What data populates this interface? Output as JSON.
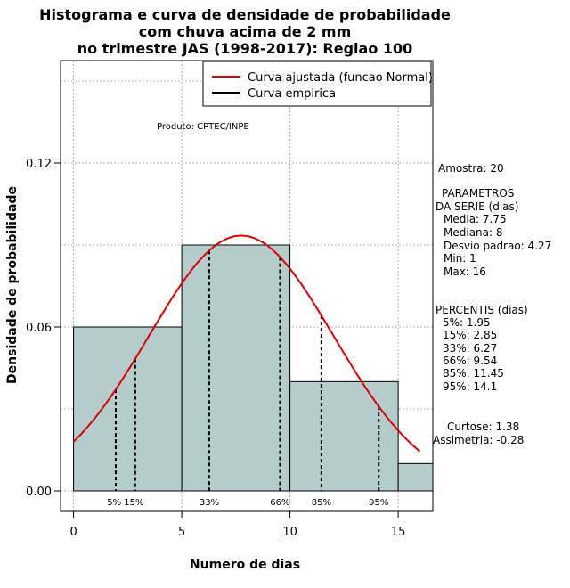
{
  "chart_data": {
    "type": "bar",
    "title_lines": [
      "Histograma e curva de densidade de probabilidade",
      "com chuva acima de 2 mm",
      "no trimestre JAS (1998-2017): Regiao 100"
    ],
    "xlabel": "Numero de dias",
    "ylabel": "Densidade de probabilidade",
    "xlim": [
      -0.6,
      16.6
    ],
    "ylim": [
      -0.0075,
      0.1575
    ],
    "x_ticks": [
      0,
      5,
      10,
      15
    ],
    "y_ticks": [
      0.0,
      0.06,
      0.12
    ],
    "y_tick_labels": [
      "0.00",
      "0.06",
      "0.12"
    ],
    "grid_x": [
      0,
      5,
      10,
      15
    ],
    "grid_y": [
      0.0,
      0.03,
      0.06,
      0.09,
      0.12,
      0.15
    ],
    "histogram": {
      "bins": [
        [
          0,
          5
        ],
        [
          5,
          10
        ],
        [
          10,
          15
        ],
        [
          15,
          16.6
        ]
      ],
      "values": [
        0.06,
        0.09,
        0.04,
        0.01
      ],
      "fill": "#b5cccc"
    },
    "normal_curve": {
      "mean": 7.75,
      "sd": 4.27,
      "x_range": [
        0,
        16
      ],
      "color": "#dd0000"
    },
    "percentile_lines": [
      {
        "label": "5%",
        "value": 1.95
      },
      {
        "label": "15%",
        "value": 2.85
      },
      {
        "label": "33%",
        "value": 6.27
      },
      {
        "label": "66%",
        "value": 9.54
      },
      {
        "label": "85%",
        "value": 11.45
      },
      {
        "label": "95%",
        "value": 14.1
      }
    ],
    "percentile_bottom_label": "5% 15%",
    "legend": {
      "position": "top-right",
      "entries": [
        {
          "label": "Curva ajustada (funcao Normal)",
          "color": "#dd0000"
        },
        {
          "label": "Curva empirica",
          "color": "#000000"
        }
      ]
    },
    "annotation": "Produto: CPTEC/INPE",
    "stats_lines": [
      "Amostra: 20",
      "PARAMETROS",
      "DA SERIE (dias)",
      "Media: 7.75",
      "Mediana: 8",
      "Desvio padrao: 4.27",
      "Min: 1",
      "Max: 16",
      "PERCENTIS (dias)",
      "5%: 1.95",
      "15%: 2.85",
      "33%: 6.27",
      "66%: 9.54",
      "85%: 11.45",
      "95%: 14.1",
      "Curtose: 1.38",
      "Assimetria: -0.28"
    ]
  }
}
